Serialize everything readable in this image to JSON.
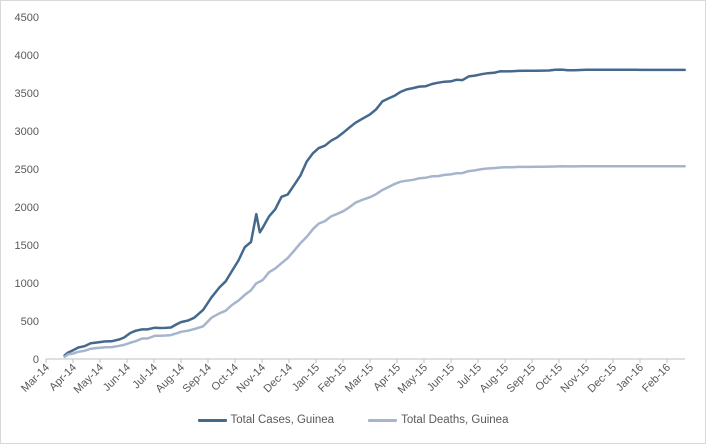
{
  "chart_data": {
    "type": "line",
    "title": "",
    "xlabel": "",
    "ylabel": "",
    "ylim": [
      0,
      4500
    ],
    "y_step": 500,
    "grid": false,
    "legend_position": "bottom-center",
    "x_tick_labels": [
      "Mar-14",
      "Apr-14",
      "May-14",
      "Jun-14",
      "Jul-14",
      "Aug-14",
      "Sep-14",
      "Oct-14",
      "Nov-14",
      "Dec-14",
      "Jan-15",
      "Feb-15",
      "Mar-15",
      "Apr-15",
      "May-15",
      "Jun-15",
      "Jul-15",
      "Aug-15",
      "Sep-15",
      "Oct-15",
      "Nov-15",
      "Dec-15",
      "Jan-16",
      "Feb-16"
    ],
    "colors": {
      "axis": "#bfbfbf",
      "labels": "#595959",
      "frame": "#d9d9d9",
      "cases": "#44698d",
      "deaths": "#a6b5cc"
    },
    "series": [
      {
        "name": "Total Cases, Guinea",
        "color": "#44698d",
        "points": [
          [
            "2014-03-22",
            49
          ],
          [
            "2014-03-26",
            86
          ],
          [
            "2014-03-31",
            112
          ],
          [
            "2014-04-07",
            151
          ],
          [
            "2014-04-14",
            168
          ],
          [
            "2014-04-21",
            208
          ],
          [
            "2014-04-30",
            221
          ],
          [
            "2014-05-07",
            231
          ],
          [
            "2014-05-14",
            233
          ],
          [
            "2014-05-23",
            258
          ],
          [
            "2014-05-28",
            281
          ],
          [
            "2014-06-05",
            344
          ],
          [
            "2014-06-11",
            372
          ],
          [
            "2014-06-18",
            390
          ],
          [
            "2014-06-24",
            390
          ],
          [
            "2014-07-02",
            412
          ],
          [
            "2014-07-08",
            408
          ],
          [
            "2014-07-14",
            409
          ],
          [
            "2014-07-20",
            415
          ],
          [
            "2014-07-27",
            460
          ],
          [
            "2014-08-01",
            485
          ],
          [
            "2014-08-09",
            506
          ],
          [
            "2014-08-16",
            543
          ],
          [
            "2014-08-26",
            648
          ],
          [
            "2014-09-05",
            812
          ],
          [
            "2014-09-14",
            942
          ],
          [
            "2014-09-21",
            1022
          ],
          [
            "2014-09-28",
            1157
          ],
          [
            "2014-10-05",
            1298
          ],
          [
            "2014-10-12",
            1472
          ],
          [
            "2014-10-19",
            1540
          ],
          [
            "2014-10-25",
            1906
          ],
          [
            "2014-10-29",
            1667
          ],
          [
            "2014-11-02",
            1731
          ],
          [
            "2014-11-09",
            1878
          ],
          [
            "2014-11-16",
            1971
          ],
          [
            "2014-11-23",
            2134
          ],
          [
            "2014-11-30",
            2164
          ],
          [
            "2014-12-07",
            2292
          ],
          [
            "2014-12-14",
            2416
          ],
          [
            "2014-12-21",
            2597
          ],
          [
            "2014-12-28",
            2707
          ],
          [
            "2015-01-04",
            2775
          ],
          [
            "2015-01-11",
            2806
          ],
          [
            "2015-01-18",
            2873
          ],
          [
            "2015-01-25",
            2917
          ],
          [
            "2015-02-01",
            2975
          ],
          [
            "2015-02-08",
            3044
          ],
          [
            "2015-02-15",
            3108
          ],
          [
            "2015-02-22",
            3155
          ],
          [
            "2015-03-01",
            3219
          ],
          [
            "2015-03-08",
            3285
          ],
          [
            "2015-03-15",
            3389
          ],
          [
            "2015-03-22",
            3429
          ],
          [
            "2015-03-29",
            3466
          ],
          [
            "2015-04-05",
            3515
          ],
          [
            "2015-04-12",
            3548
          ],
          [
            "2015-04-19",
            3565
          ],
          [
            "2015-04-26",
            3584
          ],
          [
            "2015-05-03",
            3589
          ],
          [
            "2015-05-10",
            3619
          ],
          [
            "2015-05-17",
            3635
          ],
          [
            "2015-05-24",
            3649
          ],
          [
            "2015-05-31",
            3652
          ],
          [
            "2015-06-07",
            3674
          ],
          [
            "2015-06-14",
            3670
          ],
          [
            "2015-06-21",
            3718
          ],
          [
            "2015-06-28",
            3729
          ],
          [
            "2015-07-05",
            3748
          ],
          [
            "2015-07-12",
            3760
          ],
          [
            "2015-07-19",
            3766
          ],
          [
            "2015-07-26",
            3786
          ],
          [
            "2015-08-02",
            3784
          ],
          [
            "2015-08-09",
            3787
          ],
          [
            "2015-08-16",
            3791
          ],
          [
            "2015-08-23",
            3792
          ],
          [
            "2015-08-30",
            3792
          ],
          [
            "2015-09-06",
            3792
          ],
          [
            "2015-09-13",
            3795
          ],
          [
            "2015-09-20",
            3796
          ],
          [
            "2015-09-27",
            3805
          ],
          [
            "2015-10-04",
            3808
          ],
          [
            "2015-10-11",
            3800
          ],
          [
            "2015-10-18",
            3800
          ],
          [
            "2015-10-25",
            3803
          ],
          [
            "2015-11-01",
            3806
          ],
          [
            "2015-11-08",
            3805
          ],
          [
            "2015-11-15",
            3806
          ],
          [
            "2015-11-22",
            3807
          ],
          [
            "2015-11-29",
            3806
          ],
          [
            "2015-12-06",
            3807
          ],
          [
            "2015-12-13",
            3807
          ],
          [
            "2015-12-20",
            3807
          ],
          [
            "2015-12-27",
            3807
          ],
          [
            "2016-01-03",
            3804
          ],
          [
            "2016-01-10",
            3804
          ],
          [
            "2016-01-17",
            3804
          ],
          [
            "2016-01-24",
            3804
          ],
          [
            "2016-01-31",
            3804
          ],
          [
            "2016-02-07",
            3804
          ],
          [
            "2016-02-14",
            3804
          ],
          [
            "2016-02-21",
            3804
          ]
        ]
      },
      {
        "name": "Total Deaths, Guinea",
        "color": "#a6b5cc",
        "points": [
          [
            "2014-03-22",
            29
          ],
          [
            "2014-03-26",
            60
          ],
          [
            "2014-03-31",
            70
          ],
          [
            "2014-04-07",
            95
          ],
          [
            "2014-04-14",
            108
          ],
          [
            "2014-04-21",
            136
          ],
          [
            "2014-04-30",
            146
          ],
          [
            "2014-05-07",
            155
          ],
          [
            "2014-05-14",
            157
          ],
          [
            "2014-05-23",
            174
          ],
          [
            "2014-05-28",
            186
          ],
          [
            "2014-06-05",
            215
          ],
          [
            "2014-06-11",
            236
          ],
          [
            "2014-06-18",
            270
          ],
          [
            "2014-06-24",
            270
          ],
          [
            "2014-07-02",
            305
          ],
          [
            "2014-07-08",
            307
          ],
          [
            "2014-07-14",
            309
          ],
          [
            "2014-07-20",
            314
          ],
          [
            "2014-07-27",
            339
          ],
          [
            "2014-08-01",
            358
          ],
          [
            "2014-08-09",
            373
          ],
          [
            "2014-08-16",
            394
          ],
          [
            "2014-08-26",
            430
          ],
          [
            "2014-09-05",
            543
          ],
          [
            "2014-09-14",
            601
          ],
          [
            "2014-09-21",
            635
          ],
          [
            "2014-09-28",
            710
          ],
          [
            "2014-10-05",
            768
          ],
          [
            "2014-10-12",
            843
          ],
          [
            "2014-10-19",
            904
          ],
          [
            "2014-10-25",
            997
          ],
          [
            "2014-10-29",
            1018
          ],
          [
            "2014-11-02",
            1041
          ],
          [
            "2014-11-09",
            1142
          ],
          [
            "2014-11-16",
            1192
          ],
          [
            "2014-11-23",
            1260
          ],
          [
            "2014-11-30",
            1327
          ],
          [
            "2014-12-07",
            1428
          ],
          [
            "2014-12-14",
            1525
          ],
          [
            "2014-12-21",
            1607
          ],
          [
            "2014-12-28",
            1708
          ],
          [
            "2015-01-04",
            1781
          ],
          [
            "2015-01-11",
            1814
          ],
          [
            "2015-01-18",
            1876
          ],
          [
            "2015-01-25",
            1910
          ],
          [
            "2015-02-01",
            1944
          ],
          [
            "2015-02-08",
            1995
          ],
          [
            "2015-02-15",
            2057
          ],
          [
            "2015-02-22",
            2091
          ],
          [
            "2015-03-01",
            2129
          ],
          [
            "2015-03-08",
            2170
          ],
          [
            "2015-03-15",
            2224
          ],
          [
            "2015-03-22",
            2263
          ],
          [
            "2015-03-29",
            2304
          ],
          [
            "2015-04-05",
            2333
          ],
          [
            "2015-04-12",
            2346
          ],
          [
            "2015-04-19",
            2358
          ],
          [
            "2015-04-26",
            2377
          ],
          [
            "2015-05-03",
            2386
          ],
          [
            "2015-05-10",
            2404
          ],
          [
            "2015-05-17",
            2407
          ],
          [
            "2015-05-24",
            2423
          ],
          [
            "2015-05-31",
            2429
          ],
          [
            "2015-06-07",
            2444
          ],
          [
            "2015-06-14",
            2446
          ],
          [
            "2015-06-21",
            2473
          ],
          [
            "2015-06-28",
            2482
          ],
          [
            "2015-07-05",
            2499
          ],
          [
            "2015-07-12",
            2506
          ],
          [
            "2015-07-19",
            2512
          ],
          [
            "2015-07-26",
            2520
          ],
          [
            "2015-08-02",
            2522
          ],
          [
            "2015-08-09",
            2524
          ],
          [
            "2015-08-16",
            2527
          ],
          [
            "2015-08-23",
            2527
          ],
          [
            "2015-08-30",
            2527
          ],
          [
            "2015-09-06",
            2529
          ],
          [
            "2015-09-13",
            2530
          ],
          [
            "2015-09-20",
            2532
          ],
          [
            "2015-09-27",
            2533
          ],
          [
            "2015-10-04",
            2535
          ],
          [
            "2015-10-11",
            2534
          ],
          [
            "2015-10-18",
            2534
          ],
          [
            "2015-10-25",
            2535
          ],
          [
            "2015-11-01",
            2535
          ],
          [
            "2015-11-08",
            2536
          ],
          [
            "2015-11-15",
            2536
          ],
          [
            "2015-11-22",
            2536
          ],
          [
            "2015-11-29",
            2536
          ],
          [
            "2015-12-06",
            2536
          ],
          [
            "2015-12-13",
            2536
          ],
          [
            "2015-12-20",
            2536
          ],
          [
            "2015-12-27",
            2536
          ],
          [
            "2016-01-03",
            2536
          ],
          [
            "2016-01-10",
            2536
          ],
          [
            "2016-01-17",
            2536
          ],
          [
            "2016-01-24",
            2536
          ],
          [
            "2016-01-31",
            2536
          ],
          [
            "2016-02-07",
            2536
          ],
          [
            "2016-02-14",
            2536
          ],
          [
            "2016-02-21",
            2536
          ]
        ]
      }
    ]
  }
}
